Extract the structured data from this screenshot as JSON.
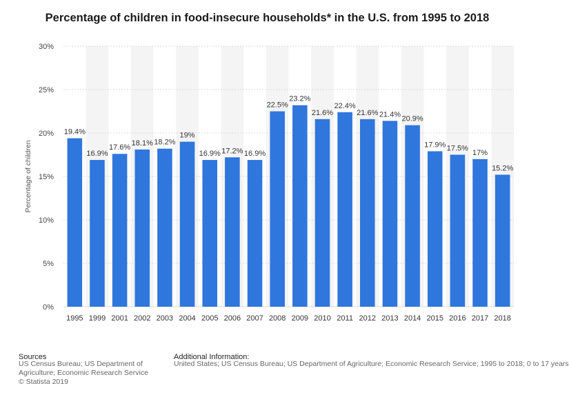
{
  "chart_data": {
    "type": "bar",
    "title": "Percentage of children in food-insecure households* in the U.S. from 1995 to 2018",
    "xlabel": "",
    "ylabel": "Percentage of children",
    "ylim": [
      0,
      30
    ],
    "yticks": [
      "0%",
      "5%",
      "10%",
      "15%",
      "20%",
      "25%",
      "30%"
    ],
    "ytick_values": [
      0,
      5,
      10,
      15,
      20,
      25,
      30
    ],
    "categories": [
      "1995",
      "1999",
      "2001",
      "2002",
      "2003",
      "2004",
      "2005",
      "2006",
      "2007",
      "2008",
      "2009",
      "2010",
      "2011",
      "2012",
      "2013",
      "2014",
      "2015",
      "2016",
      "2017",
      "2018"
    ],
    "values": [
      19.4,
      16.9,
      17.6,
      18.1,
      18.2,
      19,
      16.9,
      17.2,
      16.9,
      22.5,
      23.2,
      21.6,
      22.4,
      21.6,
      21.4,
      20.9,
      17.9,
      17.5,
      17,
      15.2
    ],
    "value_labels": [
      "19.4%",
      "16.9%",
      "17.6%",
      "18.1%",
      "18.2%",
      "19%",
      "16.9%",
      "17.2%",
      "16.9%",
      "22.5%",
      "23.2%",
      "21.6%",
      "22.4%",
      "21.6%",
      "21.4%",
      "20.9%",
      "17.9%",
      "17.5%",
      "17%",
      "15.2%"
    ],
    "grid": true,
    "bar_color": "#2f76dd"
  },
  "footer": {
    "sources_heading": "Sources",
    "sources_text": "US Census Bureau; US Department of Agriculture; Economic Research Service",
    "copyright": "© Statista 2019",
    "additional_heading": "Additional Information:",
    "additional_text": "United States; US Census Bureau; US Department of Agriculture; Economic Research Service; 1995 to 2018; 0 to 17 years"
  }
}
